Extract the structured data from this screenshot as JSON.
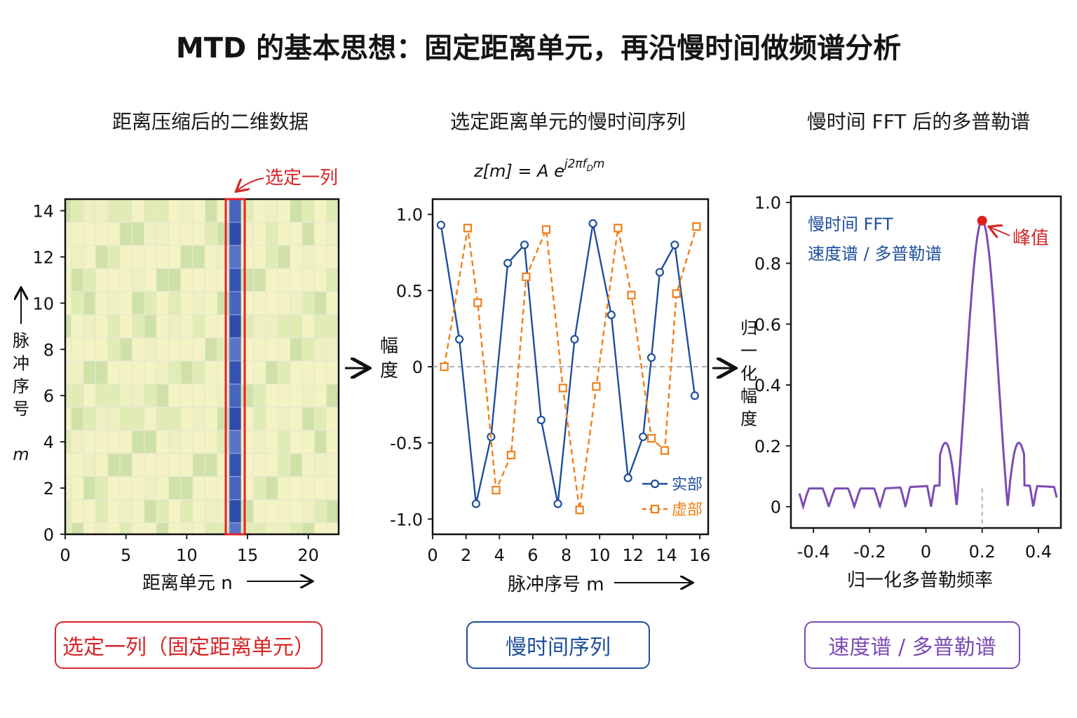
{
  "title": "MTD 的基本思想：固定距离单元，再沿慢时间做频谱分析",
  "panels": {
    "p1": {
      "title": "距离压缩后的二维数据",
      "annotation": "选定一列",
      "xlabel": "距离单元 n",
      "ylabel": "脉冲序号 m",
      "box_label": "选定一列（固定距离单元）"
    },
    "p2": {
      "title": "选定距离单元的慢时间序列",
      "formula_main": "z[m] = A e",
      "formula_sup": "j2πf",
      "formula_sub": "D",
      "formula_tail": "m",
      "xlabel": "脉冲序号 m",
      "ylabel": "幅度",
      "box_label": "慢时间序列"
    },
    "p3": {
      "title": "慢时间 FFT 后的多普勒谱",
      "text_line1": "慢时间 FFT",
      "text_line2": "速度谱 / 多普勒谱",
      "peak_label": "峰值",
      "xlabel": "归一化多普勒频率",
      "ylabel": "归一化幅度",
      "box_label": "速度谱 / 多普勒谱"
    }
  },
  "colors": {
    "red": "#d62728",
    "blue": "#1f4e9c",
    "orange": "#f07f1a",
    "purple": "#7b4bb5",
    "cell_light": "#f3f2bf",
    "cell_green": "#d5e6ad",
    "cell_blue": "#3f5fb8"
  },
  "chart_data": [
    {
      "type": "heatmap",
      "title": "距离压缩后的二维数据",
      "xlabel": "距离单元 n",
      "ylabel": "脉冲序号 m",
      "xlim": [
        0,
        22.5
      ],
      "ylim": [
        0,
        14.5
      ],
      "xticks": [
        0,
        5,
        10,
        15,
        20
      ],
      "yticks": [
        0,
        2,
        4,
        6,
        8,
        10,
        12,
        14
      ],
      "selected_column_range": [
        13.5,
        14.5
      ]
    },
    {
      "type": "line",
      "title": "选定距离单元的慢时间序列",
      "xlabel": "脉冲序号 m",
      "ylabel": "幅度",
      "xlim": [
        0,
        16.5
      ],
      "ylim": [
        -1.1,
        1.1
      ],
      "xticks": [
        0,
        2,
        4,
        6,
        8,
        10,
        12,
        14,
        16
      ],
      "yticks": [
        -1.0,
        -0.5,
        0,
        0.5,
        1.0
      ],
      "series": [
        {
          "name": "实部",
          "color": "#1f4e9c",
          "marker": "circle",
          "x": [
            0.5,
            1.6,
            2.6,
            3.5,
            4.5,
            5.5,
            6.5,
            7.5,
            8.5,
            9.6,
            10.7,
            11.7,
            12.6,
            13.1,
            13.6,
            14.5,
            15.7
          ],
          "y": [
            0.93,
            0.18,
            -0.9,
            -0.46,
            0.68,
            0.8,
            -0.35,
            -0.9,
            0.18,
            0.94,
            0.34,
            -0.73,
            -0.46,
            0.06,
            0.62,
            0.8,
            -0.19
          ]
        },
        {
          "name": "虚部",
          "color": "#f07f1a",
          "marker": "square",
          "x": [
            0.7,
            2.1,
            2.7,
            3.8,
            4.7,
            5.6,
            6.8,
            7.8,
            8.8,
            9.8,
            11.1,
            11.9,
            13.1,
            13.9,
            14.6,
            15.8
          ],
          "y": [
            0.0,
            0.91,
            0.42,
            -0.81,
            -0.58,
            0.59,
            0.9,
            -0.14,
            -0.94,
            -0.13,
            0.91,
            0.47,
            -0.47,
            -0.55,
            0.48,
            0.92
          ]
        }
      ],
      "legend_position": "bottom-right",
      "zero_line": "dashed"
    },
    {
      "type": "line",
      "title": "慢时间 FFT 后的多普勒谱",
      "xlabel": "归一化多普勒频率",
      "ylabel": "归一化幅度",
      "xlim": [
        -0.48,
        0.48
      ],
      "ylim": [
        -0.07,
        1.02
      ],
      "xticks": [
        -0.4,
        -0.2,
        0,
        0.2,
        0.4
      ],
      "xtick_labels": [
        "-0.4",
        "-0.2",
        "0",
        "0.2",
        "0.4"
      ],
      "yticks": [
        0,
        0.2,
        0.4,
        0.6,
        0.8,
        1.0
      ],
      "ytick_labels": [
        "0",
        "0.2",
        "0.4",
        "0.6",
        "0.8",
        "1.0"
      ],
      "series": [
        {
          "name": "",
          "color": "#7b4bb5",
          "model": "|Dirichlet| sinc-like",
          "peak_frequency": 0.2,
          "peak_value": 0.94,
          "first_sidelobe": 0.25
        }
      ],
      "peak_marker": {
        "x": 0.2,
        "y": 0.94,
        "label": "峰值"
      }
    }
  ]
}
